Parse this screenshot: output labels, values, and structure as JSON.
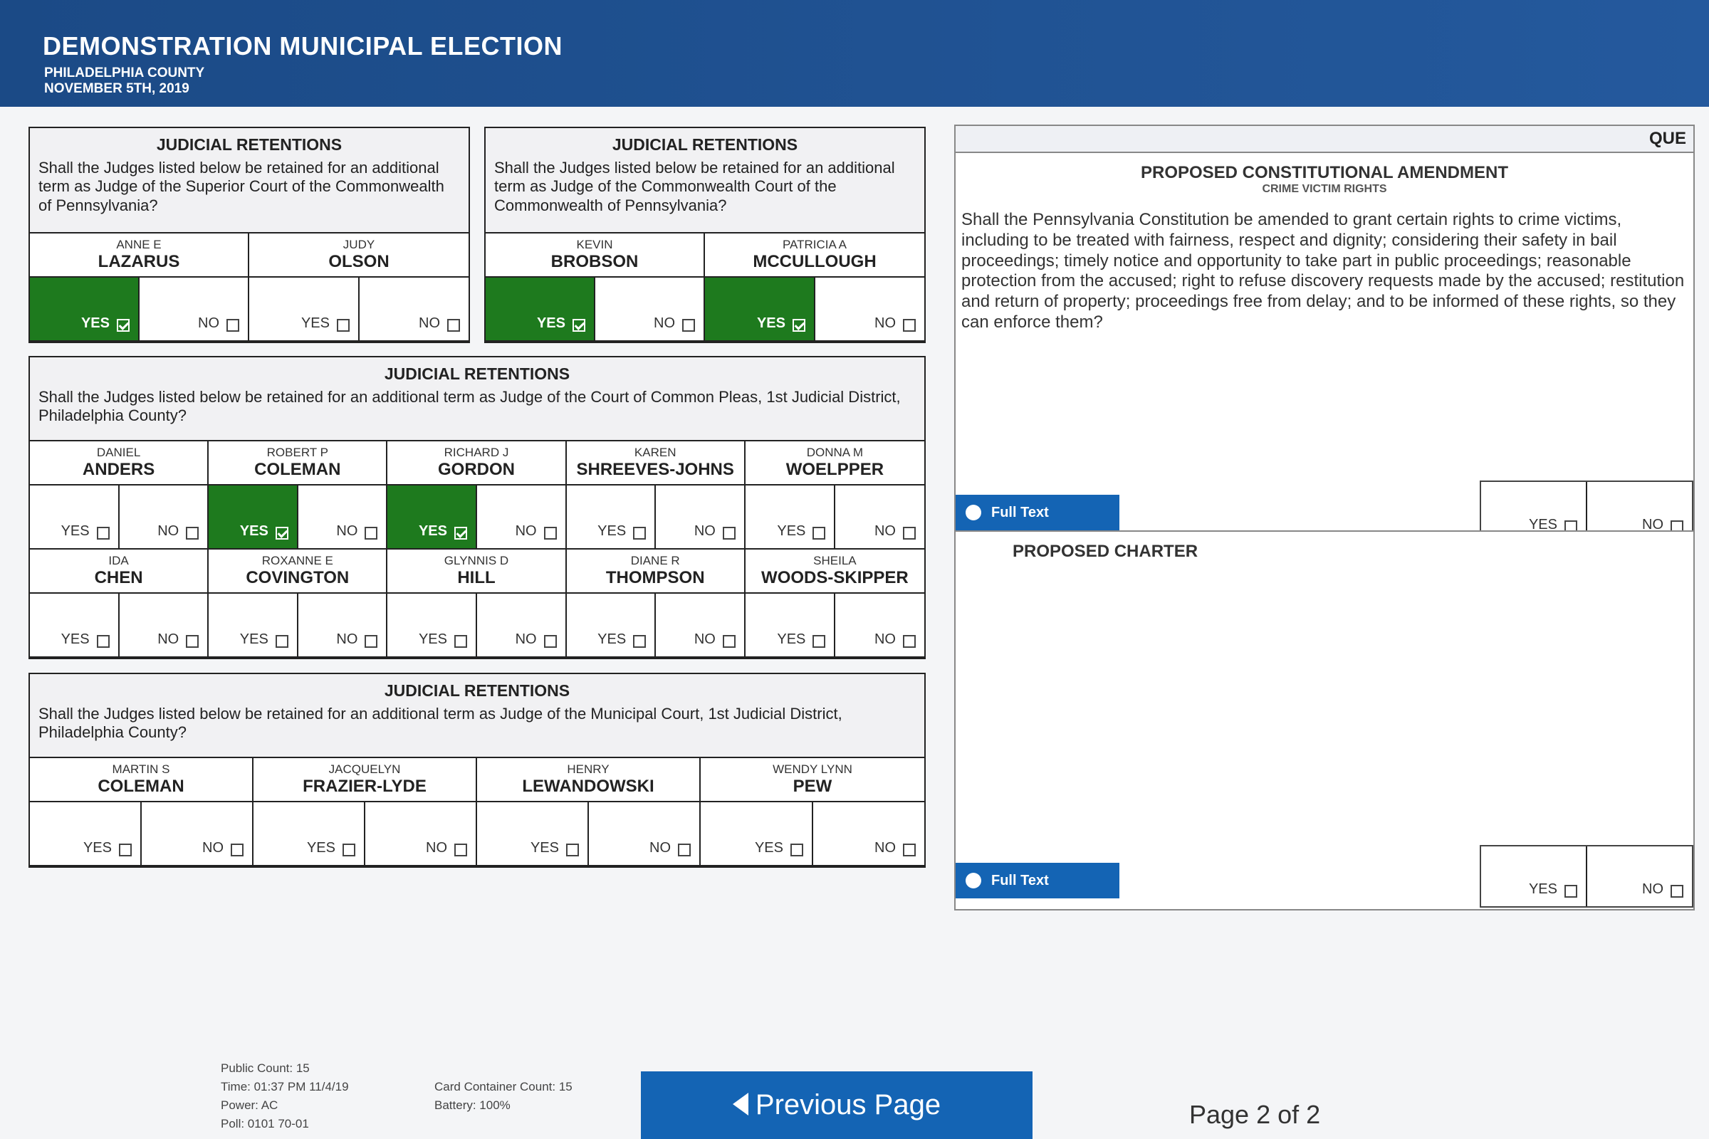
{
  "header": {
    "title": "DEMONSTRATION MUNICIPAL ELECTION",
    "county": "PHILADELPHIA COUNTY",
    "date": "NOVEMBER 5TH, 2019"
  },
  "labels": {
    "yes": "YES",
    "no": "NO"
  },
  "contests": [
    {
      "title": "JUDICIAL RETENTIONS",
      "question": "Shall the Judges listed below be retained for an additional term as Judge of the Superior Court of the Commonwealth of Pennsylvania?",
      "candidates": [
        {
          "first": "ANNE E",
          "last": "LAZARUS",
          "yes_selected": true
        },
        {
          "first": "JUDY",
          "last": "OLSON",
          "yes_selected": false
        }
      ]
    },
    {
      "title": "JUDICIAL RETENTIONS",
      "question": "Shall the Judges listed below be retained for an additional term as Judge of the Commonwealth Court of the Commonwealth of Pennsylvania?",
      "candidates": [
        {
          "first": "KEVIN",
          "last": "BROBSON",
          "yes_selected": true
        },
        {
          "first": "PATRICIA A",
          "last": "MCCULLOUGH",
          "yes_selected": true
        }
      ]
    },
    {
      "title": "JUDICIAL RETENTIONS",
      "question": "Shall the Judges listed below be retained for an additional term as Judge of the Court of Common Pleas, 1st Judicial District, Philadelphia County?",
      "candidates": [
        {
          "first": "DANIEL",
          "last": "ANDERS",
          "yes_selected": false
        },
        {
          "first": "ROBERT P",
          "last": "COLEMAN",
          "yes_selected": true
        },
        {
          "first": "RICHARD J",
          "last": "GORDON",
          "yes_selected": true
        },
        {
          "first": "KAREN",
          "last": "SHREEVES-JOHNS",
          "yes_selected": false
        },
        {
          "first": "DONNA M",
          "last": "WOELPPER",
          "yes_selected": false
        },
        {
          "first": "IDA",
          "last": "CHEN",
          "yes_selected": false
        },
        {
          "first": "ROXANNE E",
          "last": "COVINGTON",
          "yes_selected": false
        },
        {
          "first": "GLYNNIS D",
          "last": "HILL",
          "yes_selected": false
        },
        {
          "first": "DIANE R",
          "last": "THOMPSON",
          "yes_selected": false
        },
        {
          "first": "SHEILA",
          "last": "WOODS-SKIPPER",
          "yes_selected": false
        }
      ]
    },
    {
      "title": "JUDICIAL RETENTIONS",
      "question": "Shall the Judges listed below be retained for an additional term as Judge of the Municipal Court, 1st Judicial District, Philadelphia County?",
      "candidates": [
        {
          "first": "MARTIN S",
          "last": "COLEMAN",
          "yes_selected": false
        },
        {
          "first": "JACQUELYN",
          "last": "FRAZIER-LYDE",
          "yes_selected": false
        },
        {
          "first": "HENRY",
          "last": "LEWANDOWSKI",
          "yes_selected": false
        },
        {
          "first": "WENDY LYNN",
          "last": "PEW",
          "yes_selected": false
        }
      ]
    }
  ],
  "questions": {
    "header": "QUE",
    "items": [
      {
        "title": "PROPOSED CONSTITUTIONAL AMENDMENT",
        "subtitle": "CRIME VICTIM RIGHTS",
        "text": "Shall the Pennsylvania Constitution be amended to grant certain rights to crime victims, including to be treated with fairness, respect and dignity; considering their safety in bail proceedings; timely notice and opportunity to take part in public proceedings; reasonable protection from the accused; right to refuse discovery requests made by the accused; restitution and return of property; proceedings free from delay; and to be informed of these rights, so they can enforce them?",
        "full_text_button": "Full Text"
      },
      {
        "title": "PROPOSED CHARTER",
        "full_text_button": "Full Text"
      }
    ]
  },
  "footer": {
    "status": [
      "Public Count: 15",
      "Time: 01:37 PM 11/4/19",
      "Power: AC",
      "Poll: 0101 70-01"
    ],
    "card_status": [
      "Card Container Count: 15",
      "Battery: 100%"
    ],
    "previous_button": "Previous Page",
    "page_indicator": "Page 2 of 2"
  }
}
